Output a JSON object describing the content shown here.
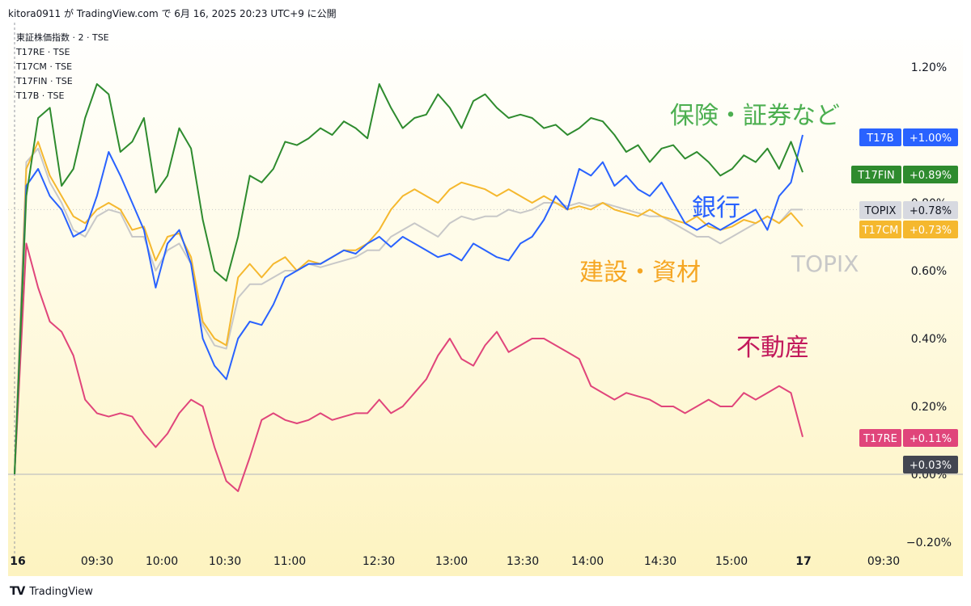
{
  "header": {
    "text": "kitora0911 が TradingView.com で 6月 16, 2025 20:23 UTC+9 に公開"
  },
  "legend": [
    {
      "label": "東証株価指数 · 2 · TSE"
    },
    {
      "label": "T17RE · TSE"
    },
    {
      "label": "T17CM · TSE"
    },
    {
      "label": "T17FIN · TSE"
    },
    {
      "label": "T17B · TSE"
    }
  ],
  "annotations": [
    {
      "text": "保険・証券など",
      "color": "#4caf50"
    },
    {
      "text": "銀行",
      "color": "#2962ff"
    },
    {
      "text": "建設・資材",
      "color": "#f5a623"
    },
    {
      "text": "TOPIX",
      "color": "#c8c8c8"
    },
    {
      "text": "不動産",
      "color": "#c2185b"
    }
  ],
  "footer": {
    "logo": "TV",
    "brand": "TradingView"
  },
  "chart_data": {
    "type": "line",
    "x": [
      "09:00",
      "09:05",
      "09:10",
      "09:15",
      "09:20",
      "09:25",
      "09:30",
      "09:35",
      "09:40",
      "09:45",
      "09:50",
      "09:55",
      "10:00",
      "10:05",
      "10:10",
      "10:15",
      "10:20",
      "10:25",
      "10:30",
      "10:35",
      "10:40",
      "10:45",
      "10:50",
      "10:55",
      "11:00",
      "11:05",
      "11:10",
      "11:15",
      "11:20",
      "11:25",
      "11:30",
      "12:30",
      "12:35",
      "12:40",
      "12:45",
      "12:50",
      "12:55",
      "13:00",
      "13:05",
      "13:10",
      "13:15",
      "13:20",
      "13:25",
      "13:30",
      "13:35",
      "13:40",
      "13:45",
      "13:50",
      "13:55",
      "14:00",
      "14:05",
      "14:10",
      "14:15",
      "14:20",
      "14:25",
      "14:30",
      "14:35",
      "14:40",
      "14:45",
      "14:50",
      "14:55",
      "15:00",
      "15:05",
      "15:10",
      "15:15",
      "15:20",
      "15:25",
      "15:30"
    ],
    "x_tick_labels": [
      "16",
      "09:30",
      "10:00",
      "10:30",
      "11:00",
      "12:30",
      "13:00",
      "13:30",
      "14:00",
      "14:30",
      "15:00",
      "17",
      "09:30"
    ],
    "y_tick_labels": [
      "1.20%",
      "0.80%",
      "0.60%",
      "0.40%",
      "0.20%",
      "0.00%",
      "−0.20%"
    ],
    "ylim": [
      -0.2,
      1.22
    ],
    "y_unit": "%",
    "series": [
      {
        "name": "T17FIN",
        "color": "#2e8b2e",
        "last_label": "+0.89%",
        "values": [
          0.0,
          0.82,
          1.05,
          1.08,
          0.85,
          0.9,
          1.05,
          1.15,
          1.12,
          0.95,
          0.98,
          1.05,
          0.83,
          0.88,
          1.02,
          0.96,
          0.75,
          0.6,
          0.57,
          0.7,
          0.88,
          0.86,
          0.9,
          0.98,
          0.97,
          0.99,
          1.02,
          1.0,
          1.04,
          1.02,
          0.99,
          1.15,
          1.08,
          1.02,
          1.05,
          1.06,
          1.12,
          1.08,
          1.02,
          1.1,
          1.12,
          1.08,
          1.05,
          1.06,
          1.05,
          1.02,
          1.03,
          1.0,
          1.02,
          1.05,
          1.04,
          1.0,
          0.95,
          0.97,
          0.92,
          0.96,
          0.97,
          0.93,
          0.95,
          0.92,
          0.88,
          0.9,
          0.94,
          0.92,
          0.96,
          0.9,
          0.98,
          0.89
        ]
      },
      {
        "name": "T17B",
        "color": "#2962ff",
        "last_label": "+1.00%",
        "values": [
          0.0,
          0.85,
          0.9,
          0.82,
          0.78,
          0.7,
          0.72,
          0.82,
          0.95,
          0.88,
          0.8,
          0.72,
          0.55,
          0.68,
          0.72,
          0.62,
          0.4,
          0.32,
          0.28,
          0.4,
          0.45,
          0.44,
          0.5,
          0.58,
          0.6,
          0.62,
          0.62,
          0.64,
          0.66,
          0.65,
          0.68,
          0.7,
          0.67,
          0.7,
          0.68,
          0.66,
          0.64,
          0.65,
          0.63,
          0.68,
          0.66,
          0.64,
          0.63,
          0.68,
          0.7,
          0.75,
          0.82,
          0.78,
          0.9,
          0.88,
          0.92,
          0.85,
          0.88,
          0.84,
          0.82,
          0.86,
          0.8,
          0.74,
          0.72,
          0.74,
          0.72,
          0.74,
          0.76,
          0.78,
          0.72,
          0.82,
          0.86,
          1.0
        ]
      },
      {
        "name": "T17CM",
        "color": "#f5b82e",
        "last_label": "+0.73%",
        "values": [
          0.0,
          0.9,
          0.98,
          0.88,
          0.82,
          0.76,
          0.74,
          0.78,
          0.8,
          0.78,
          0.72,
          0.73,
          0.63,
          0.7,
          0.71,
          0.64,
          0.45,
          0.4,
          0.38,
          0.58,
          0.62,
          0.58,
          0.62,
          0.64,
          0.6,
          0.63,
          0.62,
          0.64,
          0.66,
          0.66,
          0.68,
          0.72,
          0.78,
          0.82,
          0.84,
          0.82,
          0.8,
          0.84,
          0.86,
          0.85,
          0.84,
          0.82,
          0.84,
          0.82,
          0.8,
          0.82,
          0.8,
          0.78,
          0.79,
          0.78,
          0.8,
          0.78,
          0.77,
          0.76,
          0.78,
          0.76,
          0.75,
          0.74,
          0.76,
          0.73,
          0.72,
          0.73,
          0.75,
          0.74,
          0.76,
          0.74,
          0.77,
          0.73
        ]
      },
      {
        "name": "TOPIX",
        "color": "#c8c8c8",
        "last_label": "+0.78%",
        "values": [
          0.0,
          0.92,
          0.96,
          0.86,
          0.8,
          0.72,
          0.7,
          0.76,
          0.78,
          0.77,
          0.7,
          0.7,
          0.6,
          0.66,
          0.68,
          0.62,
          0.44,
          0.38,
          0.37,
          0.52,
          0.56,
          0.56,
          0.58,
          0.6,
          0.6,
          0.62,
          0.61,
          0.62,
          0.63,
          0.64,
          0.66,
          0.66,
          0.7,
          0.72,
          0.74,
          0.72,
          0.7,
          0.74,
          0.76,
          0.75,
          0.76,
          0.76,
          0.78,
          0.77,
          0.78,
          0.8,
          0.8,
          0.79,
          0.8,
          0.79,
          0.8,
          0.79,
          0.78,
          0.77,
          0.76,
          0.76,
          0.74,
          0.72,
          0.7,
          0.7,
          0.68,
          0.7,
          0.72,
          0.74,
          0.76,
          0.74,
          0.78,
          0.78
        ]
      },
      {
        "name": "T17RE",
        "color": "#e0457b",
        "last_label": "+0.11%",
        "values": [
          0.0,
          0.68,
          0.55,
          0.45,
          0.42,
          0.35,
          0.22,
          0.18,
          0.17,
          0.18,
          0.17,
          0.12,
          0.08,
          0.12,
          0.18,
          0.22,
          0.2,
          0.08,
          -0.02,
          -0.05,
          0.05,
          0.16,
          0.18,
          0.16,
          0.15,
          0.16,
          0.18,
          0.16,
          0.17,
          0.18,
          0.18,
          0.22,
          0.18,
          0.2,
          0.24,
          0.28,
          0.35,
          0.4,
          0.34,
          0.32,
          0.38,
          0.42,
          0.36,
          0.38,
          0.4,
          0.4,
          0.38,
          0.36,
          0.34,
          0.26,
          0.24,
          0.22,
          0.24,
          0.23,
          0.22,
          0.2,
          0.2,
          0.18,
          0.2,
          0.22,
          0.2,
          0.2,
          0.24,
          0.22,
          0.24,
          0.26,
          0.24,
          0.11
        ]
      }
    ],
    "extra_labels": [
      {
        "value": 0.03,
        "label": "+0.03%",
        "color": "#434651"
      }
    ],
    "grid": false
  }
}
